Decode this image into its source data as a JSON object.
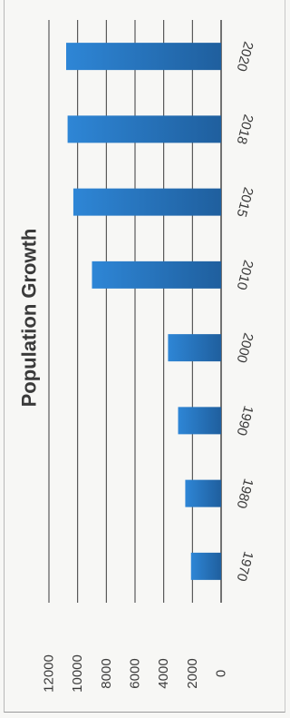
{
  "chart_data": {
    "type": "bar",
    "orientation": "horizontal-rotated",
    "title": "Population Growth",
    "categories": [
      "1970",
      "1980",
      "1990",
      "2000",
      "2010",
      "2015",
      "2018",
      "2020"
    ],
    "values": [
      2100,
      2500,
      3000,
      3700,
      9000,
      10300,
      10700,
      10800
    ],
    "ylim": [
      0,
      12000
    ],
    "ticks": [
      "0",
      "2000",
      "4000",
      "6000",
      "8000",
      "10000",
      "12000"
    ],
    "grid": true,
    "bar_color": "#2e86d6",
    "bar_color_dark": "#1f5f9e"
  }
}
